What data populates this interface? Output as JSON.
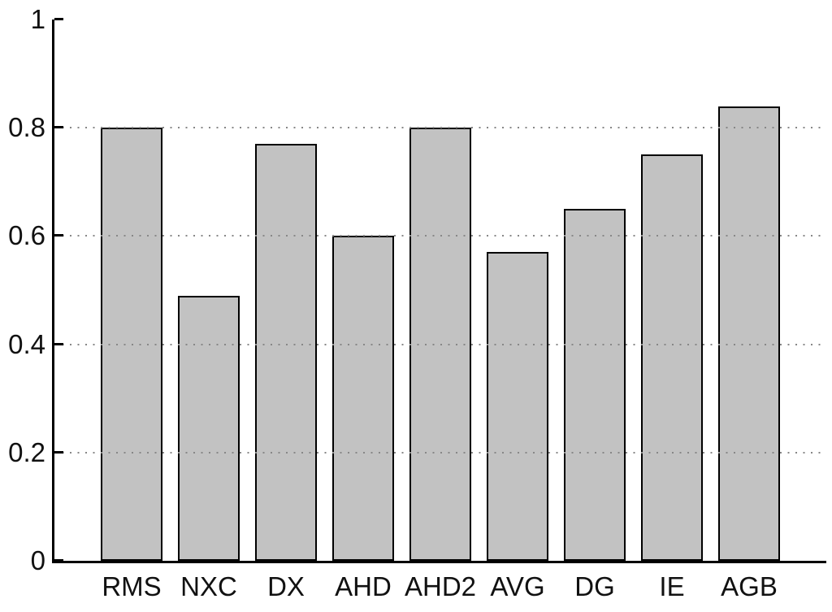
{
  "figure": {
    "background": "#ffffff",
    "title": ""
  },
  "chart_data": {
    "type": "bar",
    "categories": [
      "RMS",
      "NXC",
      "DX",
      "AHD",
      "AHD2",
      "AVG",
      "DG",
      "IE",
      "AGB"
    ],
    "values": [
      0.8,
      0.49,
      0.77,
      0.6,
      0.8,
      0.57,
      0.65,
      0.75,
      0.84
    ],
    "title": "",
    "xlabel": "",
    "ylabel": "",
    "ylim": [
      0,
      1
    ],
    "xlim": [
      0,
      10
    ],
    "bar_centers": [
      1,
      2,
      3,
      4,
      5,
      6,
      7,
      8,
      9
    ],
    "bar_width_units": 0.8,
    "yticks": [
      0,
      0.2,
      0.4,
      0.6,
      0.8,
      1
    ],
    "ytick_labels": [
      "0",
      "0.2",
      "0.4",
      "0.6",
      "0.8",
      "1"
    ],
    "gridline_values": [
      0.2,
      0.4,
      0.6,
      0.8
    ],
    "grid_style": "dotted",
    "grid_on_top_of_bars": true,
    "legend_position": "none",
    "bar_fill_color": "#c2c2c2",
    "bar_edge_color": "#000000",
    "grid_color": "#878787",
    "axis_color": "#000000",
    "text_color": "#111111"
  }
}
